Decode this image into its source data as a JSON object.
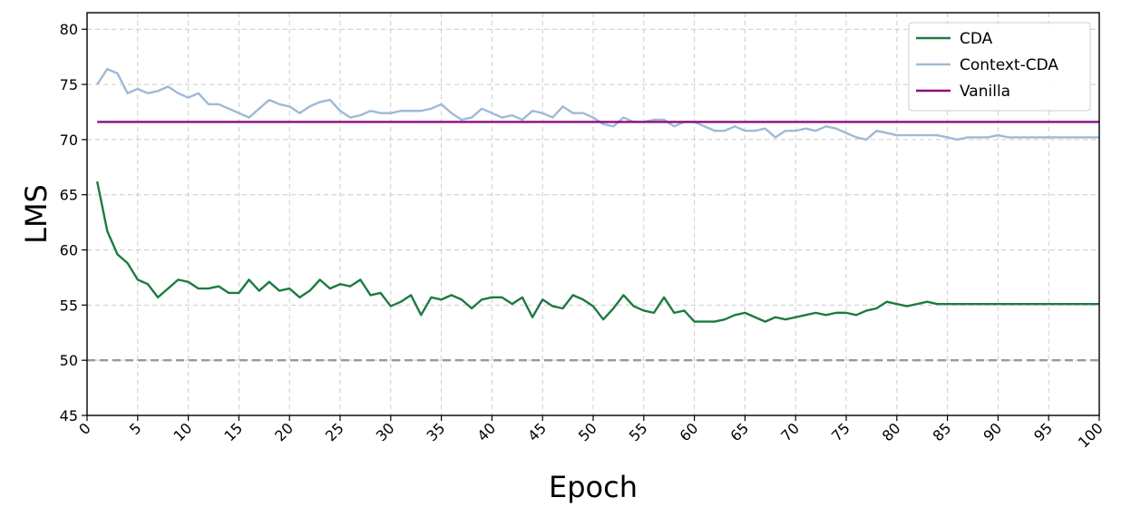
{
  "chart_data": {
    "type": "line",
    "title": "",
    "xlabel": "Epoch",
    "ylabel": "LMS",
    "xlim": [
      0,
      100
    ],
    "ylim": [
      45,
      81.5
    ],
    "xticks": [
      0,
      5,
      10,
      15,
      20,
      25,
      30,
      35,
      40,
      45,
      50,
      55,
      60,
      65,
      70,
      75,
      80,
      85,
      90,
      95,
      100
    ],
    "yticks": [
      45,
      50,
      55,
      60,
      65,
      70,
      75,
      80
    ],
    "grid": true,
    "legend_position": "top-right",
    "reference_line": {
      "y": 50,
      "style": "dashed",
      "color": "#999999"
    },
    "x": [
      1,
      2,
      3,
      4,
      5,
      6,
      7,
      8,
      9,
      10,
      11,
      12,
      13,
      14,
      15,
      16,
      17,
      18,
      19,
      20,
      21,
      22,
      23,
      24,
      25,
      26,
      27,
      28,
      29,
      30,
      31,
      32,
      33,
      34,
      35,
      36,
      37,
      38,
      39,
      40,
      41,
      42,
      43,
      44,
      45,
      46,
      47,
      48,
      49,
      50,
      51,
      52,
      53,
      54,
      55,
      56,
      57,
      58,
      59,
      60,
      61,
      62,
      63,
      64,
      65,
      66,
      67,
      68,
      69,
      70,
      71,
      72,
      73,
      74,
      75,
      76,
      77,
      78,
      79,
      80,
      81,
      82,
      83,
      84,
      85,
      86,
      87,
      88,
      89,
      90,
      91,
      92,
      93,
      94,
      95,
      96,
      97,
      98,
      99,
      100
    ],
    "series": [
      {
        "name": "CDA",
        "color": "#1e7a40",
        "values": [
          66.2,
          61.7,
          59.6,
          58.8,
          57.3,
          56.9,
          55.7,
          56.5,
          57.3,
          57.1,
          56.5,
          56.5,
          56.7,
          56.1,
          56.1,
          57.3,
          56.3,
          57.1,
          56.3,
          56.5,
          55.7,
          56.3,
          57.3,
          56.5,
          56.9,
          56.7,
          57.3,
          55.9,
          56.1,
          54.9,
          55.3,
          55.9,
          54.1,
          55.7,
          55.5,
          55.9,
          55.5,
          54.7,
          55.5,
          55.7,
          55.7,
          55.1,
          55.7,
          53.9,
          55.5,
          54.9,
          54.7,
          55.9,
          55.5,
          54.9,
          53.7,
          54.7,
          55.9,
          54.9,
          54.5,
          54.3,
          55.7,
          54.3,
          54.5,
          53.5,
          53.5,
          53.5,
          53.7,
          54.1,
          54.3,
          53.9,
          53.5,
          53.9,
          53.7,
          53.9,
          54.1,
          54.3,
          54.1,
          54.3,
          54.3,
          54.1,
          54.5,
          54.7,
          55.3,
          55.1,
          54.9,
          55.1,
          55.3,
          55.1,
          55.1,
          55.1,
          55.1,
          55.1,
          55.1,
          55.1,
          55.1,
          55.1,
          55.1,
          55.1,
          55.1,
          55.1,
          55.1,
          55.1,
          55.1,
          55.1
        ]
      },
      {
        "name": "Context-CDA",
        "color": "#9fbad6",
        "values": [
          75.0,
          76.4,
          76.0,
          74.2,
          74.6,
          74.2,
          74.4,
          74.8,
          74.2,
          73.8,
          74.2,
          73.2,
          73.2,
          72.8,
          72.4,
          72.0,
          72.8,
          73.6,
          73.2,
          73.0,
          72.4,
          73.0,
          73.4,
          73.6,
          72.6,
          72.0,
          72.2,
          72.6,
          72.4,
          72.4,
          72.6,
          72.6,
          72.6,
          72.8,
          73.2,
          72.4,
          71.8,
          72.0,
          72.8,
          72.4,
          72.0,
          72.2,
          71.8,
          72.6,
          72.4,
          72.0,
          73.0,
          72.4,
          72.4,
          72.0,
          71.4,
          71.2,
          72.0,
          71.6,
          71.6,
          71.8,
          71.8,
          71.2,
          71.6,
          71.6,
          71.2,
          70.8,
          70.8,
          71.2,
          70.8,
          70.8,
          71.0,
          70.2,
          70.8,
          70.8,
          71.0,
          70.8,
          71.2,
          71.0,
          70.6,
          70.2,
          70.0,
          70.8,
          70.6,
          70.4,
          70.4,
          70.4,
          70.4,
          70.4,
          70.2,
          70.0,
          70.2,
          70.2,
          70.2,
          70.4,
          70.2,
          70.2,
          70.2,
          70.2,
          70.2,
          70.2,
          70.2,
          70.2,
          70.2,
          70.2
        ]
      },
      {
        "name": "Vanilla",
        "color": "#8a0d7e",
        "constant": 71.6
      }
    ]
  }
}
